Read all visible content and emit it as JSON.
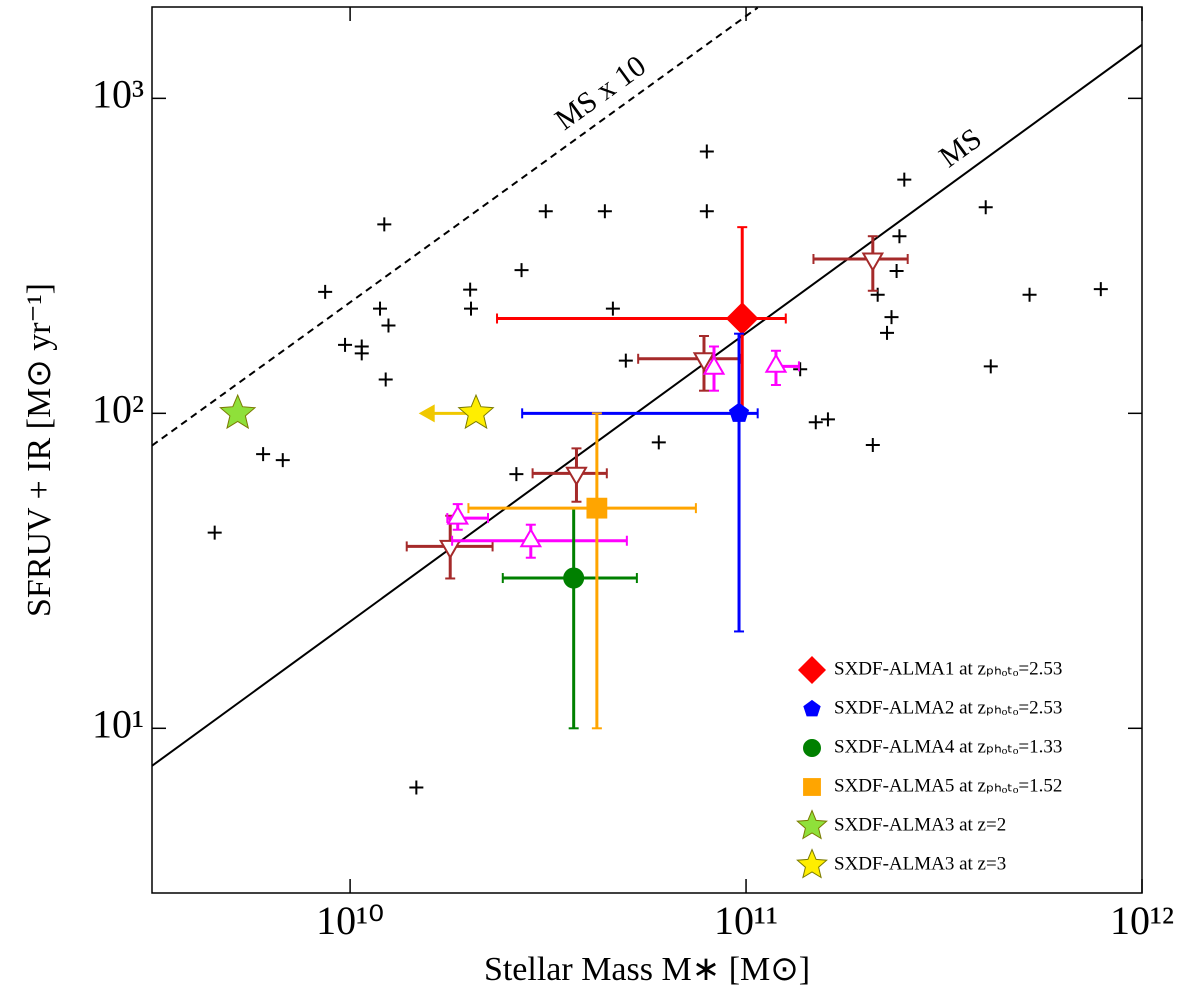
{
  "chart_data": {
    "type": "scatter",
    "x_label": "Stellar Mass M∗ [M⊙]",
    "y_label": "SFRUV + IR [M⊙ yr⁻¹]",
    "log_x": true,
    "log_y": true,
    "xlim": [
      3160000000,
      1000000000000
    ],
    "ylim": [
      3,
      1950
    ],
    "xticks": [
      {
        "value": 10000000000,
        "label": "10¹⁰"
      },
      {
        "value": 100000000000,
        "label": "10¹¹"
      },
      {
        "value": 1000000000000,
        "label": "10¹²"
      }
    ],
    "yticks": [
      {
        "value": 10,
        "label": "10¹"
      },
      {
        "value": 100,
        "label": "10²"
      },
      {
        "value": 1000,
        "label": "10³"
      }
    ],
    "legend": "lower right",
    "annotations": [
      "MS",
      "MS x 10"
    ],
    "series": [
      {
        "type": "line",
        "color": "#000000",
        "linestyle": "solid",
        "x": [
          3160000000,
          1000000000000
        ],
        "values": [
          7.6,
          1480
        ]
      },
      {
        "type": "line",
        "color": "#000000",
        "linestyle": "dashed",
        "x": [
          3160000000,
          107000000000
        ],
        "values": [
          79,
          1940
        ]
      },
      {
        "marker": "plus",
        "color": "#000000",
        "x": [
          4550000000,
          8650000000,
          6030000000,
          6760000000,
          9710000000,
          10700000000,
          10700000000,
          11900000000,
          12200000000,
          12500000000,
          12300000000,
          20100000000,
          20200000000,
          26300000000,
          27100000000,
          31200000000,
          44000000000,
          46100000000,
          49700000000,
          60200000000,
          79600000000,
          79600000000,
          137000000000,
          150000000000,
          161000000000,
          209000000000,
          215000000000,
          251000000000,
          244000000000,
          240000000000,
          233000000000,
          227000000000,
          403000000000,
          415000000000,
          520000000000,
          787000000000,
          14700000000
        ],
        "values": [
          41.8,
          243,
          74.2,
          71.0,
          165,
          163,
          155,
          215,
          398,
          190,
          128,
          247,
          215,
          64.1,
          285,
          438,
          438,
          215,
          147,
          80.9,
          678,
          438,
          138,
          93.7,
          95.7,
          79.3,
          238,
          552,
          365,
          283,
          202,
          180,
          451,
          141,
          238,
          248,
          6.49
        ]
      },
      {
        "marker": "triangle-down",
        "color": "#a52a2a",
        "filled": false,
        "x": [
          209000000000,
          78300000000,
          37300000000,
          17900000000
        ],
        "values": [
          309,
          149,
          64.5,
          37.8
        ],
        "x_low": [
          148000000000,
          53400000000,
          28900000000,
          13900000000
        ],
        "x_high": [
          256000000000,
          97000000000,
          44500000000,
          22900000000
        ],
        "y_low": [
          245,
          118,
          52.4,
          29.9
        ],
        "y_high": [
          365,
          176,
          77.4,
          47.3
        ]
      },
      {
        "marker": "triangle-up",
        "color": "#ff00ff",
        "filled": false,
        "x": [
          83000000000,
          119000000000,
          28600000000,
          18700000000
        ],
        "values": [
          139,
          141,
          39.4,
          46.5
        ],
        "x_low": [
          null,
          null,
          18100000000,
          17600000000
        ],
        "x_high": [
          null,
          136000000000,
          50000000000,
          22300000000
        ],
        "y_low": [
          118,
          123,
          34.8,
          42.7
        ],
        "y_high": [
          163,
          158,
          44.3,
          51.5
        ]
      },
      {
        "name": "SXDF-ALMA1 at zₚₕₒₜₒ=2.53",
        "marker": "diamond",
        "color": "#ff0000",
        "filled": true,
        "x": [
          97800000000
        ],
        "values": [
          200
        ],
        "x_low": [
          23500000000
        ],
        "x_high": [
          126000000000
        ],
        "y_low": [
          100
        ],
        "y_high": [
          390
        ]
      },
      {
        "name": "SXDF-ALMA2 at zₚₕₒₜₒ=2.53",
        "marker": "pentagon",
        "color": "#0000ff",
        "filled": true,
        "x": [
          96000000000
        ],
        "values": [
          100
        ],
        "x_low": [
          27200000000
        ],
        "x_high": [
          107000000000
        ],
        "y_low": [
          20.3
        ],
        "y_high": [
          179
        ]
      },
      {
        "name": "SXDF-ALMA4 at zₚₕₒₜₒ=1.33",
        "marker": "circle",
        "color": "#008000",
        "filled": true,
        "x": [
          36700000000
        ],
        "values": [
          30
        ],
        "x_low": [
          24300000000
        ],
        "x_high": [
          53000000000
        ],
        "y_low": [
          10
        ],
        "y_high": [
          50
        ]
      },
      {
        "name": "SXDF-ALMA5 at zₚₕₒₜₒ=1.52",
        "marker": "square",
        "color": "#ffa500",
        "filled": true,
        "x": [
          42000000000
        ],
        "values": [
          50
        ],
        "x_low": [
          19900000000
        ],
        "x_high": [
          74700000000
        ],
        "y_low": [
          10
        ],
        "y_high": [
          100
        ]
      },
      {
        "name": "SXDF-ALMA3 at z=2",
        "marker": "star",
        "color": "#8fe03a",
        "filled": true,
        "x": [
          5200000000
        ],
        "values": [
          100
        ]
      },
      {
        "name": "SXDF-ALMA3 at z=3",
        "marker": "star",
        "color": "#ffee00",
        "arrow_color": "#f0c800",
        "filled": true,
        "x": [
          20800000000
        ],
        "values": [
          100
        ],
        "x_limit_to": [
          14900000000
        ]
      }
    ]
  }
}
